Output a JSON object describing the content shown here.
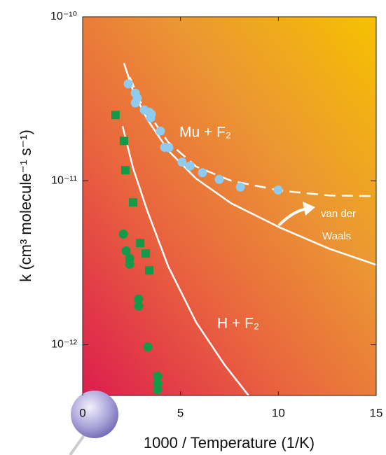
{
  "chart_data": {
    "type": "scatter",
    "x_label": "1000 / Temperature (1/K)",
    "y_label": "k (cm³ molecule⁻¹ s⁻¹)",
    "log_y": true,
    "xlim": [
      0,
      15
    ],
    "ylim": [
      4.9e-13,
      1e-10
    ],
    "xticks": [
      0,
      5,
      10,
      15
    ],
    "yticks": [
      {
        "value": 1e-12,
        "label": "10⁻¹²"
      },
      {
        "value": 1e-11,
        "label": "10⁻¹¹"
      },
      {
        "value": 1e-10,
        "label": "10⁻¹⁰"
      }
    ],
    "annotations": [
      "Mu + F₂",
      "H + F₂",
      "van der",
      "Waals"
    ],
    "series": [
      {
        "marker": "circle",
        "color": "#8ecbee",
        "x": [
          2.33,
          2.69,
          2.79,
          2.69,
          3.15,
          3.4,
          3.51,
          3.47,
          3.97,
          4.19,
          4.4,
          5.08,
          5.48,
          6.12,
          6.98,
          8.06,
          9.99
        ],
        "values": [
          3.9e-11,
          3.42e-11,
          3.19e-11,
          2.98e-11,
          2.7e-11,
          2.62e-11,
          2.55e-11,
          2.42e-11,
          2.01e-11,
          1.6e-11,
          1.59e-11,
          1.3e-11,
          1.23e-11,
          1.12e-11,
          1.02e-11,
          9.16e-12,
          8.8e-12
        ]
      },
      {
        "marker": "square",
        "color": "#139a48",
        "x": [
          1.68,
          2.11,
          2.18,
          2.58,
          2.94,
          3.22,
          3.4
        ],
        "values": [
          2.52e-11,
          1.75e-11,
          1.16e-11,
          7.38e-12,
          4.17e-12,
          3.6e-12,
          2.84e-12
        ]
      },
      {
        "marker": "circle",
        "color": "#139a48",
        "x": [
          2.08,
          2.22,
          2.4,
          2.4,
          2.86,
          2.86,
          3.33,
          3.83,
          3.83,
          3.83
        ],
        "values": [
          4.73e-12,
          3.74e-12,
          3.36e-12,
          3.1e-12,
          1.9e-12,
          1.72e-12,
          9.7e-13,
          6.43e-13,
          5.82e-13,
          5.32e-13
        ]
      }
    ],
    "lines": [
      {
        "style": "solid",
        "color": "#ffffff",
        "x": [
          2.11,
          2.58,
          3.29,
          4.37,
          5.8,
          7.59,
          10.1,
          12.6,
          15
        ],
        "values": [
          5.22e-11,
          3.52e-11,
          2.38e-11,
          1.53e-11,
          1.03e-11,
          7.29e-12,
          5.17e-12,
          3.85e-12,
          3.07e-12
        ]
      },
      {
        "style": "dashed",
        "color": "#ffffff",
        "x": [
          2.4,
          2.94,
          4.37,
          5.8,
          7.59,
          10.1,
          12.6,
          15
        ],
        "values": [
          4.29e-11,
          3.04e-11,
          1.72e-11,
          1.22e-11,
          1e-11,
          8.71e-12,
          8.13e-12,
          8.05e-12
        ]
      },
      {
        "style": "solid",
        "color": "#ffffff",
        "x": [
          2.04,
          2.58,
          3.29,
          4.37,
          5.8,
          7.23,
          8.49
        ],
        "values": [
          2.15e-11,
          1.19e-11,
          6.62e-12,
          3.01e-12,
          1.37e-12,
          7.6e-13,
          4.88e-13
        ]
      }
    ]
  }
}
